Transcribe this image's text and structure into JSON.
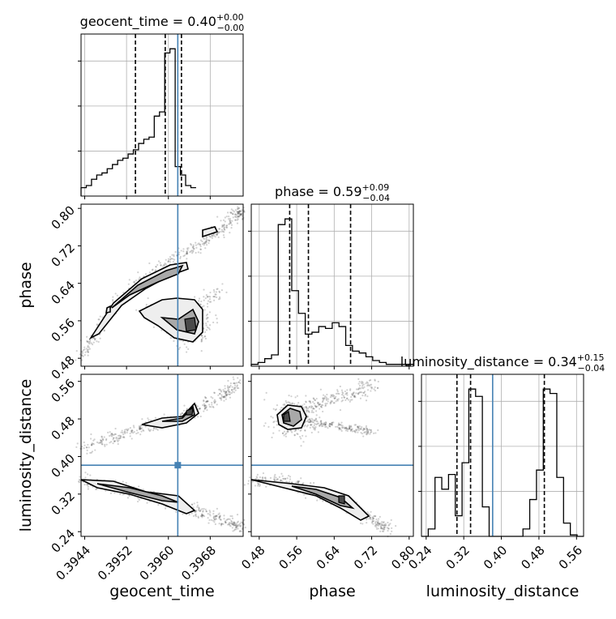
{
  "chart_data": {
    "type": "corner",
    "parameters": [
      {
        "name": "geocent_time",
        "label": "geocent_time",
        "range": [
          0.39433,
          0.39743
        ],
        "ticks": [
          "0.3944",
          "0.3952",
          "0.3960",
          "0.3968"
        ],
        "title_base": "geocent_time = 0.40",
        "title_sup": "+0.00",
        "title_sub": "−0.00",
        "quantiles": [
          0.39537,
          0.39594,
          0.39625
        ],
        "truth": 0.39618,
        "hist_edges_start": 0.39433,
        "hist_bin_width": 0.0001,
        "hist_counts": [
          4,
          5,
          8,
          10,
          11,
          13,
          15,
          17,
          18,
          20,
          22,
          25,
          27,
          28,
          38,
          40,
          68,
          70,
          14,
          10,
          5,
          4
        ]
      },
      {
        "name": "phase",
        "label": "phase",
        "range": [
          0.463,
          0.809
        ],
        "ticks": [
          "0.48",
          "0.56",
          "0.64",
          "0.72",
          "0.80"
        ],
        "title_base": "phase = 0.59",
        "title_sup": "+0.09",
        "title_sub": "−0.04",
        "quantiles": [
          0.545,
          0.585,
          0.675
        ],
        "truth": null,
        "hist_edges_start": 0.463,
        "hist_bin_width": 0.0144,
        "hist_counts": [
          1,
          2,
          4,
          6,
          75,
          78,
          40,
          28,
          17,
          18,
          21,
          20,
          23,
          21,
          11,
          8,
          7,
          5,
          3,
          2,
          1,
          1,
          1,
          1
        ]
      },
      {
        "name": "luminosity_distance",
        "label": "luminosity_distance",
        "range": [
          0.23,
          0.575
        ],
        "ticks": [
          "0.24",
          "0.32",
          "0.40",
          "0.48",
          "0.56"
        ],
        "title_base": "luminosity_distance = 0.34",
        "title_sup": "+0.15",
        "title_sub": "−0.04",
        "quantiles": [
          0.3055,
          0.3345,
          0.4915
        ],
        "truth": 0.3815,
        "hist_edges_start": 0.23,
        "hist_bin_width": 0.0144,
        "hist_counts": [
          0,
          5,
          40,
          32,
          42,
          14,
          50,
          100,
          95,
          20,
          0,
          0,
          0,
          0,
          0,
          5,
          25,
          45,
          100,
          97,
          40,
          9,
          1,
          0
        ]
      }
    ],
    "truth_point_2d": {
      "geocent_time": 0.39618,
      "luminosity_distance": 0.3815
    }
  }
}
